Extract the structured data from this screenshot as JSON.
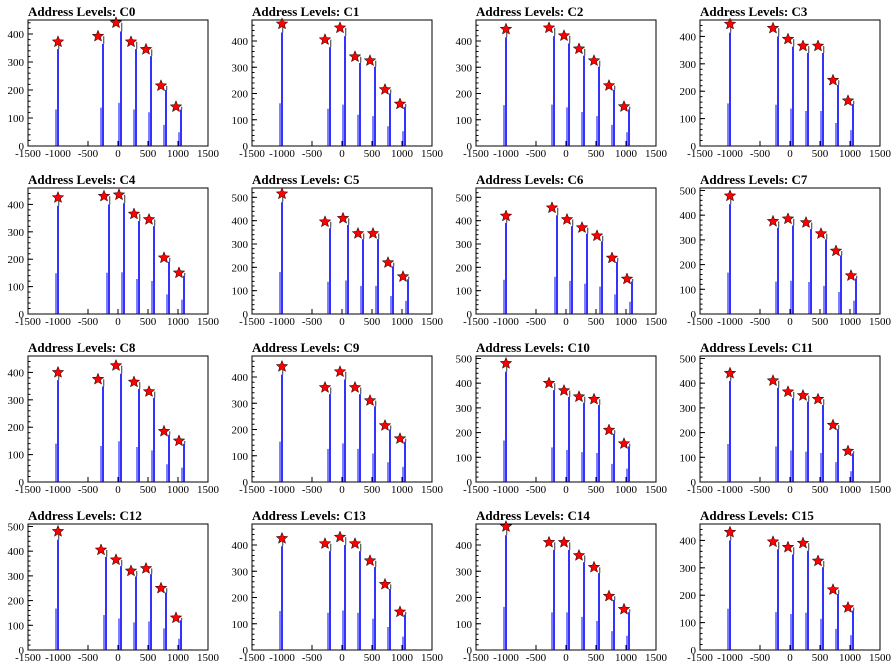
{
  "figure": {
    "title_prefix": "Address Levels: "
  },
  "style": {
    "histogram_color": "#0000ff",
    "marker_color": "#ff0000",
    "frame_color": "#000000"
  },
  "chart_data": [
    {
      "type": "bar",
      "title": "Address Levels: C0",
      "xlim": [
        -1500,
        1500
      ],
      "ylim": [
        0,
        450
      ],
      "yticks": [
        0,
        100,
        200,
        300,
        400
      ],
      "xticks": [
        -1500,
        -1000,
        -500,
        0,
        500,
        1000,
        1500
      ],
      "xticklabels": [
        "-1500",
        "-1000",
        "-500",
        "0",
        "500",
        "1000",
        "1500"
      ],
      "peaks": [
        {
          "x": -1000,
          "y": 372
        },
        {
          "x": -250,
          "y": 392
        },
        {
          "x": 50,
          "y": 440
        },
        {
          "x": 300,
          "y": 372
        },
        {
          "x": 550,
          "y": 345
        },
        {
          "x": 800,
          "y": 215
        },
        {
          "x": 1050,
          "y": 140
        }
      ]
    },
    {
      "type": "bar",
      "title": "Address Levels: C1",
      "xlim": [
        -1500,
        1500
      ],
      "ylim": [
        0,
        480
      ],
      "yticks": [
        0,
        100,
        200,
        300,
        400
      ],
      "xticks": [
        -1500,
        -1000,
        -500,
        0,
        500,
        1000,
        1500
      ],
      "xticklabels": [
        "-1500",
        "-1000",
        "-500",
        "0",
        "500",
        "1000",
        "1500"
      ],
      "peaks": [
        {
          "x": -1000,
          "y": 465
        },
        {
          "x": -200,
          "y": 405
        },
        {
          "x": 50,
          "y": 450
        },
        {
          "x": 300,
          "y": 340
        },
        {
          "x": 550,
          "y": 325
        },
        {
          "x": 800,
          "y": 215
        },
        {
          "x": 1050,
          "y": 160
        }
      ]
    },
    {
      "type": "bar",
      "title": "Address Levels: C2",
      "xlim": [
        -1500,
        1500
      ],
      "ylim": [
        0,
        480
      ],
      "yticks": [
        0,
        100,
        200,
        300,
        400
      ],
      "xticks": [
        -1500,
        -1000,
        -500,
        0,
        500,
        1000,
        1500
      ],
      "xticklabels": [
        "-1500",
        "-1000",
        "-500",
        "0",
        "500",
        "1000",
        "1500"
      ],
      "peaks": [
        {
          "x": -1000,
          "y": 445
        },
        {
          "x": -200,
          "y": 450
        },
        {
          "x": 50,
          "y": 420
        },
        {
          "x": 300,
          "y": 370
        },
        {
          "x": 550,
          "y": 325
        },
        {
          "x": 800,
          "y": 230
        },
        {
          "x": 1050,
          "y": 150
        }
      ]
    },
    {
      "type": "bar",
      "title": "Address Levels: C3",
      "xlim": [
        -1500,
        1500
      ],
      "ylim": [
        0,
        460
      ],
      "yticks": [
        0,
        100,
        200,
        300,
        400
      ],
      "xticks": [
        -1500,
        -1000,
        -500,
        0,
        500,
        1000,
        1500
      ],
      "xticklabels": [
        "-1500",
        "-1000",
        "-500",
        "0",
        "500",
        "1000",
        "1500"
      ],
      "peaks": [
        {
          "x": -1000,
          "y": 445
        },
        {
          "x": -200,
          "y": 430
        },
        {
          "x": 50,
          "y": 390
        },
        {
          "x": 300,
          "y": 365
        },
        {
          "x": 550,
          "y": 365
        },
        {
          "x": 800,
          "y": 240
        },
        {
          "x": 1050,
          "y": 165
        }
      ]
    },
    {
      "type": "bar",
      "title": "Address Levels: C4",
      "xlim": [
        -1500,
        1500
      ],
      "ylim": [
        0,
        460
      ],
      "yticks": [
        0,
        100,
        200,
        300,
        400
      ],
      "xticks": [
        -1500,
        -1000,
        -500,
        0,
        500,
        1000,
        1500
      ],
      "xticklabels": [
        "-1500",
        "-1000",
        "-500",
        "0",
        "500",
        "1000",
        "1500"
      ],
      "peaks": [
        {
          "x": -1000,
          "y": 425
        },
        {
          "x": -150,
          "y": 430
        },
        {
          "x": 100,
          "y": 435
        },
        {
          "x": 350,
          "y": 365
        },
        {
          "x": 600,
          "y": 345
        },
        {
          "x": 850,
          "y": 205
        },
        {
          "x": 1100,
          "y": 150
        }
      ]
    },
    {
      "type": "bar",
      "title": "Address Levels: C5",
      "xlim": [
        -1500,
        1500
      ],
      "ylim": [
        0,
        540
      ],
      "yticks": [
        0,
        100,
        200,
        300,
        400,
        500
      ],
      "xticks": [
        -1500,
        -1000,
        -500,
        0,
        500,
        1000,
        1500
      ],
      "xticklabels": [
        "-1500",
        "-1000",
        "-500",
        "0",
        "500",
        "1000",
        "1500"
      ],
      "peaks": [
        {
          "x": -1000,
          "y": 515
        },
        {
          "x": -200,
          "y": 395
        },
        {
          "x": 100,
          "y": 410
        },
        {
          "x": 350,
          "y": 345
        },
        {
          "x": 600,
          "y": 345
        },
        {
          "x": 850,
          "y": 220
        },
        {
          "x": 1100,
          "y": 160
        }
      ]
    },
    {
      "type": "bar",
      "title": "Address Levels: C6",
      "xlim": [
        -1500,
        1500
      ],
      "ylim": [
        0,
        540
      ],
      "yticks": [
        0,
        100,
        200,
        300,
        400,
        500
      ],
      "xticks": [
        -1500,
        -1000,
        -500,
        0,
        500,
        1000,
        1500
      ],
      "xticklabels": [
        "-1500",
        "-1000",
        "-500",
        "0",
        "500",
        "1000",
        "1500"
      ],
      "peaks": [
        {
          "x": -1000,
          "y": 420
        },
        {
          "x": -150,
          "y": 455
        },
        {
          "x": 100,
          "y": 405
        },
        {
          "x": 350,
          "y": 370
        },
        {
          "x": 600,
          "y": 335
        },
        {
          "x": 850,
          "y": 240
        },
        {
          "x": 1100,
          "y": 150
        }
      ]
    },
    {
      "type": "bar",
      "title": "Address Levels: C7",
      "xlim": [
        -1500,
        1500
      ],
      "ylim": [
        0,
        510
      ],
      "yticks": [
        0,
        100,
        200,
        300,
        400,
        500
      ],
      "xticks": [
        -1500,
        -1000,
        -500,
        0,
        500,
        1000,
        1500
      ],
      "xticklabels": [
        "-1500",
        "-1000",
        "-500",
        "0",
        "500",
        "1000",
        "1500"
      ],
      "peaks": [
        {
          "x": -1000,
          "y": 478
        },
        {
          "x": -200,
          "y": 375
        },
        {
          "x": 50,
          "y": 385
        },
        {
          "x": 350,
          "y": 370
        },
        {
          "x": 600,
          "y": 325
        },
        {
          "x": 850,
          "y": 255
        },
        {
          "x": 1100,
          "y": 155
        }
      ]
    },
    {
      "type": "bar",
      "title": "Address Levels: C8",
      "xlim": [
        -1500,
        1500
      ],
      "ylim": [
        0,
        460
      ],
      "yticks": [
        0,
        100,
        200,
        300,
        400
      ],
      "xticks": [
        -1500,
        -1000,
        -500,
        0,
        500,
        1000,
        1500
      ],
      "xticklabels": [
        "-1500",
        "-1000",
        "-500",
        "0",
        "500",
        "1000",
        "1500"
      ],
      "peaks": [
        {
          "x": -1000,
          "y": 400
        },
        {
          "x": -250,
          "y": 375
        },
        {
          "x": 50,
          "y": 425
        },
        {
          "x": 350,
          "y": 365
        },
        {
          "x": 600,
          "y": 330
        },
        {
          "x": 850,
          "y": 185
        },
        {
          "x": 1100,
          "y": 150
        }
      ]
    },
    {
      "type": "bar",
      "title": "Address Levels: C9",
      "xlim": [
        -1500,
        1500
      ],
      "ylim": [
        0,
        480
      ],
      "yticks": [
        0,
        100,
        200,
        300,
        400
      ],
      "xticks": [
        -1500,
        -1000,
        -500,
        0,
        500,
        1000,
        1500
      ],
      "xticklabels": [
        "-1500",
        "-1000",
        "-500",
        "0",
        "500",
        "1000",
        "1500"
      ],
      "peaks": [
        {
          "x": -1000,
          "y": 440
        },
        {
          "x": -200,
          "y": 360
        },
        {
          "x": 50,
          "y": 420
        },
        {
          "x": 300,
          "y": 360
        },
        {
          "x": 550,
          "y": 310
        },
        {
          "x": 800,
          "y": 215
        },
        {
          "x": 1050,
          "y": 165
        }
      ]
    },
    {
      "type": "bar",
      "title": "Address Levels: C10",
      "xlim": [
        -1500,
        1500
      ],
      "ylim": [
        0,
        510
      ],
      "yticks": [
        0,
        100,
        200,
        300,
        400,
        500
      ],
      "xticks": [
        -1500,
        -1000,
        -500,
        0,
        500,
        1000,
        1500
      ],
      "xticklabels": [
        "-1500",
        "-1000",
        "-500",
        "0",
        "500",
        "1000",
        "1500"
      ],
      "peaks": [
        {
          "x": -1000,
          "y": 480
        },
        {
          "x": -200,
          "y": 400
        },
        {
          "x": 50,
          "y": 370
        },
        {
          "x": 300,
          "y": 345
        },
        {
          "x": 550,
          "y": 335
        },
        {
          "x": 800,
          "y": 210
        },
        {
          "x": 1050,
          "y": 155
        }
      ]
    },
    {
      "type": "bar",
      "title": "Address Levels: C11",
      "xlim": [
        -1500,
        1500
      ],
      "ylim": [
        0,
        510
      ],
      "yticks": [
        0,
        100,
        200,
        300,
        400,
        500
      ],
      "xticks": [
        -1500,
        -1000,
        -500,
        0,
        500,
        1000,
        1500
      ],
      "xticklabels": [
        "-1500",
        "-1000",
        "-500",
        "0",
        "500",
        "1000",
        "1500"
      ],
      "peaks": [
        {
          "x": -1000,
          "y": 440
        },
        {
          "x": -200,
          "y": 410
        },
        {
          "x": 50,
          "y": 365
        },
        {
          "x": 300,
          "y": 350
        },
        {
          "x": 550,
          "y": 335
        },
        {
          "x": 800,
          "y": 230
        },
        {
          "x": 1050,
          "y": 125
        }
      ]
    },
    {
      "type": "bar",
      "title": "Address Levels: C12",
      "xlim": [
        -1500,
        1500
      ],
      "ylim": [
        0,
        510
      ],
      "yticks": [
        0,
        100,
        200,
        300,
        400,
        500
      ],
      "xticks": [
        -1500,
        -1000,
        -500,
        0,
        500,
        1000,
        1500
      ],
      "xticklabels": [
        "-1500",
        "-1000",
        "-500",
        "0",
        "500",
        "1000",
        "1500"
      ],
      "peaks": [
        {
          "x": -1000,
          "y": 480
        },
        {
          "x": -200,
          "y": 405
        },
        {
          "x": 50,
          "y": 365
        },
        {
          "x": 300,
          "y": 320
        },
        {
          "x": 550,
          "y": 330
        },
        {
          "x": 800,
          "y": 250
        },
        {
          "x": 1050,
          "y": 130
        }
      ]
    },
    {
      "type": "bar",
      "title": "Address Levels: C13",
      "xlim": [
        -1500,
        1500
      ],
      "ylim": [
        0,
        480
      ],
      "yticks": [
        0,
        100,
        200,
        300,
        400
      ],
      "xticks": [
        -1500,
        -1000,
        -500,
        0,
        500,
        1000,
        1500
      ],
      "xticklabels": [
        "-1500",
        "-1000",
        "-500",
        "0",
        "500",
        "1000",
        "1500"
      ],
      "peaks": [
        {
          "x": -1000,
          "y": 425
        },
        {
          "x": -200,
          "y": 405
        },
        {
          "x": 50,
          "y": 430
        },
        {
          "x": 300,
          "y": 405
        },
        {
          "x": 550,
          "y": 340
        },
        {
          "x": 800,
          "y": 250
        },
        {
          "x": 1050,
          "y": 145
        }
      ]
    },
    {
      "type": "bar",
      "title": "Address Levels: C14",
      "xlim": [
        -1500,
        1500
      ],
      "ylim": [
        0,
        480
      ],
      "yticks": [
        0,
        100,
        200,
        300,
        400
      ],
      "xticks": [
        -1500,
        -1000,
        -500,
        0,
        500,
        1000,
        1500
      ],
      "xticklabels": [
        "-1500",
        "-1000",
        "-500",
        "0",
        "500",
        "1000",
        "1500"
      ],
      "peaks": [
        {
          "x": -1000,
          "y": 470
        },
        {
          "x": -200,
          "y": 410
        },
        {
          "x": 50,
          "y": 410
        },
        {
          "x": 300,
          "y": 360
        },
        {
          "x": 550,
          "y": 315
        },
        {
          "x": 800,
          "y": 205
        },
        {
          "x": 1050,
          "y": 155
        }
      ]
    },
    {
      "type": "bar",
      "title": "Address Levels: C15",
      "xlim": [
        -1500,
        1500
      ],
      "ylim": [
        0,
        460
      ],
      "yticks": [
        0,
        100,
        200,
        300,
        400
      ],
      "xticks": [
        -1500,
        -1000,
        -500,
        0,
        500,
        1000,
        1500
      ],
      "xticklabels": [
        "-1500",
        "-1000",
        "-500",
        "0",
        "500",
        "1000",
        "1500"
      ],
      "peaks": [
        {
          "x": -1000,
          "y": 430
        },
        {
          "x": -200,
          "y": 395
        },
        {
          "x": 50,
          "y": 375
        },
        {
          "x": 300,
          "y": 390
        },
        {
          "x": 550,
          "y": 325
        },
        {
          "x": 800,
          "y": 220
        },
        {
          "x": 1050,
          "y": 155
        }
      ]
    }
  ]
}
